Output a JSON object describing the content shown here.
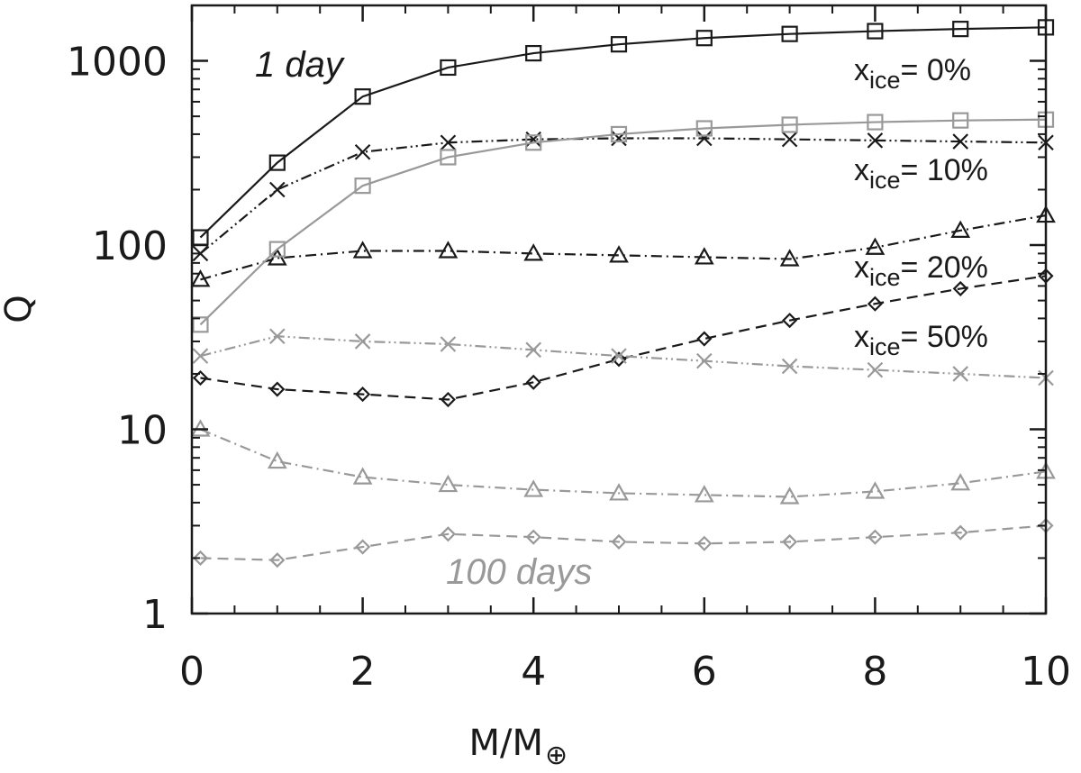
{
  "chart_data": {
    "type": "line",
    "xlabel": "M/M",
    "xlabel_symbol": "⊕",
    "ylabel": "Q",
    "xlim": [
      0,
      10
    ],
    "ylim": [
      1,
      2000
    ],
    "yscale": "log",
    "x_ticks": [
      {
        "value": 0,
        "label": "0"
      },
      {
        "value": 2,
        "label": "2"
      },
      {
        "value": 4,
        "label": "4"
      },
      {
        "value": 6,
        "label": "6"
      },
      {
        "value": 8,
        "label": "8"
      },
      {
        "value": 10,
        "label": "10"
      }
    ],
    "y_ticks": [
      {
        "value": 1,
        "label": "1"
      },
      {
        "value": 10,
        "label": "10"
      },
      {
        "value": 100,
        "label": "100"
      },
      {
        "value": 1000,
        "label": "1000"
      }
    ],
    "x": [
      0.1,
      1,
      2,
      3,
      4,
      5,
      6,
      7,
      8,
      9,
      10
    ],
    "series": [
      {
        "name": "1 day, x_ice = 0%",
        "period": "1 day",
        "ice": "0%",
        "marker": "square",
        "dash": "solid",
        "color": "#1a1a1a",
        "values": [
          110,
          280,
          640,
          920,
          1100,
          1230,
          1330,
          1400,
          1450,
          1490,
          1520
        ]
      },
      {
        "name": "1 day, x_ice = 10%",
        "period": "1 day",
        "ice": "10%",
        "marker": "cross",
        "dash": "dashdotdot",
        "color": "#1a1a1a",
        "values": [
          90,
          200,
          320,
          360,
          375,
          380,
          380,
          375,
          370,
          365,
          360
        ]
      },
      {
        "name": "1 day, x_ice = 20%",
        "period": "1 day",
        "ice": "20%",
        "marker": "triangle",
        "dash": "dashdot",
        "color": "#1a1a1a",
        "values": [
          65,
          85,
          93,
          93,
          90,
          88,
          86,
          84,
          97,
          120,
          145
        ]
      },
      {
        "name": "1 day, x_ice = 50%",
        "period": "1 day",
        "ice": "50%",
        "marker": "diamond",
        "dash": "dashed",
        "color": "#1a1a1a",
        "values": [
          19,
          16.5,
          15.5,
          14.5,
          18,
          24,
          31,
          39,
          48,
          58,
          68
        ]
      },
      {
        "name": "100 days, x_ice = 0%",
        "period": "100 days",
        "ice": "0%",
        "marker": "square",
        "dash": "solid",
        "color": "#999999",
        "values": [
          37,
          95,
          210,
          300,
          360,
          400,
          430,
          450,
          465,
          475,
          480
        ]
      },
      {
        "name": "100 days, x_ice = 10%",
        "period": "100 days",
        "ice": "10%",
        "marker": "cross",
        "dash": "dashdotdot",
        "color": "#999999",
        "values": [
          25,
          32,
          30,
          29,
          27,
          25,
          23.5,
          22,
          21,
          20,
          19
        ]
      },
      {
        "name": "100 days, x_ice = 20%",
        "period": "100 days",
        "ice": "20%",
        "marker": "triangle",
        "dash": "dashdot",
        "color": "#999999",
        "values": [
          10,
          6.7,
          5.5,
          5.0,
          4.7,
          4.5,
          4.4,
          4.3,
          4.6,
          5.1,
          5.9
        ]
      },
      {
        "name": "100 days, x_ice = 50%",
        "period": "100 days",
        "ice": "50%",
        "marker": "diamond",
        "dash": "dashed",
        "color": "#999999",
        "values": [
          2.0,
          1.95,
          2.3,
          2.7,
          2.6,
          2.45,
          2.4,
          2.45,
          2.6,
          2.75,
          3.0
        ]
      }
    ],
    "annotations": {
      "period_fast": {
        "text": "1 day",
        "color": "#1a1a1a"
      },
      "period_slow": {
        "text": "100 days",
        "color": "#999999"
      },
      "ice_labels": [
        {
          "prefix": "x",
          "sub": "ice",
          "value": "= 0%"
        },
        {
          "prefix": "x",
          "sub": "ice",
          "value": "= 10%"
        },
        {
          "prefix": "x",
          "sub": "ice",
          "value": "= 20%"
        },
        {
          "prefix": "x",
          "sub": "ice",
          "value": "= 50%"
        }
      ]
    }
  }
}
